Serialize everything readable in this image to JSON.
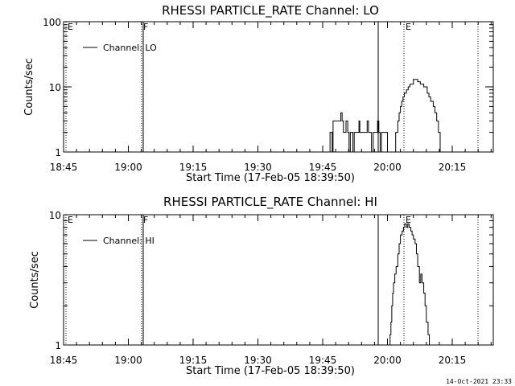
{
  "footer": {
    "timestamp": "14-Oct-2021 23:33"
  },
  "chart_data": [
    {
      "type": "line",
      "title": "RHESSI PARTICLE_RATE Channel: LO",
      "xlabel": "Start Time (17-Feb-05 18:39:50)",
      "ylabel": "Counts/sec",
      "yscale": "log",
      "ylim": [
        1,
        100
      ],
      "xlim_minutes": [
        18.5,
        101.5
      ],
      "xticks": [
        "18:45",
        "19:00",
        "19:15",
        "19:30",
        "19:45",
        "20:00",
        "20:15"
      ],
      "yticks": [
        "1",
        "10",
        "100"
      ],
      "legend": {
        "label": "Channel: LO",
        "position": "top-left"
      },
      "markers": [
        {
          "label": "E",
          "at_minutes": 18.5,
          "style": "dotted"
        },
        {
          "label": "F",
          "at_minutes": 59,
          "style": "dotted"
        },
        {
          "label": "",
          "at_minutes": 59.5,
          "style": "solid"
        },
        {
          "label": "",
          "at_minutes": 88.2,
          "style": "solid"
        },
        {
          "label": "E",
          "at_minutes": 93.5,
          "style": "dotted"
        },
        {
          "label": "",
          "at_minutes": 107.5,
          "style": "dotted"
        }
      ],
      "series": [
        {
          "x_minutes": [
            70.7,
            71.1,
            71.5,
            72,
            72.2,
            72.5,
            72.8,
            73,
            73.4,
            73.7,
            74,
            74.3,
            74.6,
            74.9,
            75.2,
            75.6,
            75.9,
            76.2,
            76.5,
            76.8,
            77.1,
            77.5,
            77.8,
            78.2,
            78.4,
            78.8,
            79.1,
            79.4,
            79.8,
            80.1,
            80.4,
            80.8,
            81.1,
            81.5,
            81.9,
            82.2,
            82.5,
            82.8,
            83.1,
            83.4,
            83.7,
            84,
            84.2,
            84.5,
            84.8,
            85.2,
            85.5,
            85.8,
            86.1,
            86.5,
            86.7,
            87.2,
            87.5,
            87.8,
            88.1,
            88.4,
            88.7,
            89.2,
            89.6,
            90,
            90.4,
            90.8,
            91.2,
            91.8,
            92,
            92.4,
            92.8,
            93.2,
            93.7,
            94,
            94.4,
            94.8,
            95.4,
            95.8,
            96.2,
            96.6,
            97,
            97.4,
            97.8,
            98.3,
            98.5,
            98.9,
            99.5,
            99.7
          ],
          "values": [
            1,
            1,
            2,
            1,
            3,
            3,
            3,
            3,
            3,
            3,
            4,
            3,
            2,
            2,
            3,
            2,
            1,
            2,
            2,
            1,
            2,
            2,
            2,
            3,
            2,
            2,
            2,
            2,
            2,
            3,
            2,
            2,
            1,
            2,
            2,
            2,
            3,
            2,
            1,
            2,
            2,
            2,
            2,
            2,
            1,
            1,
            1,
            1,
            1,
            1,
            2,
            3,
            4,
            5,
            6,
            7,
            8,
            9,
            10,
            11,
            11,
            13,
            13,
            12,
            12,
            11,
            11,
            10,
            10,
            8,
            7,
            6,
            5,
            4,
            3,
            2,
            1,
            1,
            1,
            1,
            1,
            1,
            1,
            1
          ]
        }
      ]
    },
    {
      "type": "line",
      "title": "RHESSI PARTICLE_RATE Channel: HI",
      "xlabel": "Start Time (17-Feb-05 18:39:50)",
      "ylabel": "Counts/sec",
      "yscale": "log",
      "ylim": [
        1,
        10
      ],
      "xlim_minutes": [
        18.5,
        101.5
      ],
      "xticks": [
        "18:45",
        "19:00",
        "19:15",
        "19:30",
        "19:45",
        "20:00",
        "20:15"
      ],
      "yticks": [
        "1",
        "10"
      ],
      "legend": {
        "label": "Channel: HI",
        "position": "top-left"
      },
      "markers": [
        {
          "label": "E",
          "at_minutes": 18.5,
          "style": "dotted"
        },
        {
          "label": "F",
          "at_minutes": 59,
          "style": "dotted"
        },
        {
          "label": "",
          "at_minutes": 59.5,
          "style": "solid"
        },
        {
          "label": "",
          "at_minutes": 88.2,
          "style": "solid"
        },
        {
          "label": "E",
          "at_minutes": 93.5,
          "style": "dotted"
        },
        {
          "label": "",
          "at_minutes": 107.5,
          "style": "dotted"
        }
      ],
      "series": [
        {
          "x_minutes": [
            85.2,
            85.4,
            85.6,
            85.8,
            86.0,
            86.2,
            86.5,
            86.8,
            87.2,
            87.5,
            87.8,
            88.2,
            88.5,
            88.8,
            89.2,
            89.5,
            89.8,
            90.2,
            90.5,
            90.8,
            91.2,
            91.5,
            91.8,
            92.2,
            92.5,
            92.8,
            93.2,
            93.5,
            93.8,
            94.2,
            94.5,
            94.8,
            95.2,
            95.4
          ],
          "values": [
            1,
            1.2,
            1.5,
            2,
            2.5,
            3,
            3.5,
            4,
            5,
            6,
            7,
            7.5,
            8,
            8.5,
            8,
            8.5,
            8,
            7.5,
            7,
            6.5,
            6,
            5,
            4,
            3,
            3.5,
            3,
            2.5,
            2,
            1.5,
            1.2,
            1,
            1,
            1,
            1
          ]
        }
      ]
    }
  ]
}
